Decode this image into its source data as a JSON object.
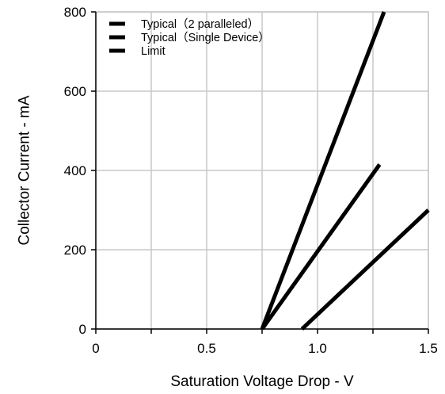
{
  "chart_data": {
    "type": "line",
    "title": "",
    "xlabel": "Saturation Voltage Drop - V",
    "ylabel": "Collector Current - mA",
    "xlim": [
      0,
      1.5
    ],
    "ylim": [
      0,
      800
    ],
    "x_ticks": [
      0,
      0.25,
      0.5,
      0.75,
      1.0,
      1.25,
      1.5
    ],
    "x_tick_labels": [
      "0",
      "",
      "0.5",
      "",
      "1.0",
      "",
      "1.5"
    ],
    "y_ticks": [
      0,
      200,
      400,
      600,
      800
    ],
    "y_tick_labels": [
      "0",
      "200",
      "400",
      "600",
      "800"
    ],
    "grid": true,
    "legend_position": "top-left",
    "series": [
      {
        "name": "Typical（2 paralleled）",
        "color": "#000000",
        "x": [
          0.75,
          1.3
        ],
        "y": [
          0,
          800
        ]
      },
      {
        "name": "Typical（Single Device）",
        "color": "#000000",
        "x": [
          0.75,
          1.28
        ],
        "y": [
          0,
          415
        ]
      },
      {
        "name": "Limit",
        "color": "#000000",
        "x": [
          0.93,
          1.5
        ],
        "y": [
          0,
          300
        ]
      }
    ]
  }
}
